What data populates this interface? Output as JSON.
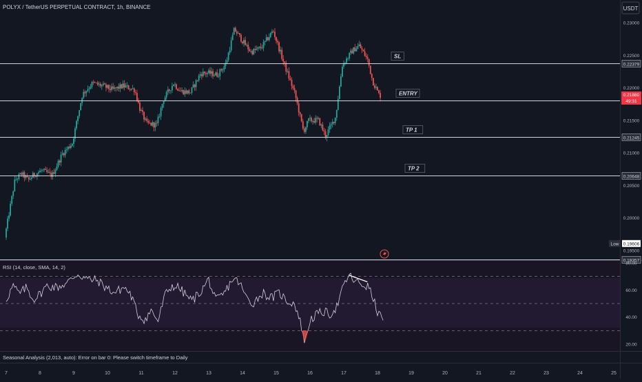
{
  "header": {
    "symbol_title": "POLYX / TetherUS PERPETUAL CONTRACT, 1h, BINANCE",
    "currency": "USDT"
  },
  "colors": {
    "background": "#131722",
    "up": "#26a69a",
    "down": "#ef5350",
    "rsi_line": "#d1d4dc",
    "price_badge": "#f23645"
  },
  "chart_data": [
    {
      "type": "candlestick",
      "title": "POLYX / TetherUS PERPETUAL CONTRACT, 1h, BINANCE",
      "ylim": [
        0.1935,
        0.2335
      ],
      "y_ticks": [
        "0.23000",
        "0.22500",
        "0.22000",
        "0.21500",
        "0.21000",
        "0.20500",
        "0.20000",
        "0.19500"
      ],
      "x_ticks": [
        "7",
        "8",
        "9",
        "10",
        "11",
        "12",
        "13",
        "14",
        "15",
        "16",
        "17",
        "18",
        "19",
        "20",
        "21",
        "22",
        "23",
        "24",
        "25"
      ],
      "path_points": [
        {
          "day": 7.0,
          "price": 0.197
        },
        {
          "day": 7.3,
          "price": 0.2058
        },
        {
          "day": 7.5,
          "price": 0.2068
        },
        {
          "day": 7.7,
          "price": 0.2058
        },
        {
          "day": 7.85,
          "price": 0.2066
        },
        {
          "day": 8.1,
          "price": 0.2073
        },
        {
          "day": 8.4,
          "price": 0.2065
        },
        {
          "day": 8.7,
          "price": 0.2098
        },
        {
          "day": 9.0,
          "price": 0.2115
        },
        {
          "day": 9.3,
          "price": 0.219
        },
        {
          "day": 9.6,
          "price": 0.2207
        },
        {
          "day": 9.9,
          "price": 0.2203
        },
        {
          "day": 10.2,
          "price": 0.2197
        },
        {
          "day": 10.5,
          "price": 0.2203
        },
        {
          "day": 10.85,
          "price": 0.2197
        },
        {
          "day": 11.0,
          "price": 0.2168
        },
        {
          "day": 11.2,
          "price": 0.2145
        },
        {
          "day": 11.5,
          "price": 0.2143
        },
        {
          "day": 11.7,
          "price": 0.2182
        },
        {
          "day": 12.0,
          "price": 0.2207
        },
        {
          "day": 12.2,
          "price": 0.2195
        },
        {
          "day": 12.5,
          "price": 0.2193
        },
        {
          "day": 12.8,
          "price": 0.2222
        },
        {
          "day": 13.0,
          "price": 0.2223
        },
        {
          "day": 13.3,
          "price": 0.222
        },
        {
          "day": 13.55,
          "price": 0.2237
        },
        {
          "day": 13.8,
          "price": 0.229
        },
        {
          "day": 14.1,
          "price": 0.2268
        },
        {
          "day": 14.3,
          "price": 0.2255
        },
        {
          "day": 14.6,
          "price": 0.2262
        },
        {
          "day": 14.95,
          "price": 0.2288
        },
        {
          "day": 15.3,
          "price": 0.2233
        },
        {
          "day": 15.6,
          "price": 0.219
        },
        {
          "day": 15.85,
          "price": 0.2133
        },
        {
          "day": 16.0,
          "price": 0.215
        },
        {
          "day": 16.3,
          "price": 0.215
        },
        {
          "day": 16.5,
          "price": 0.2126
        },
        {
          "day": 16.8,
          "price": 0.2155
        },
        {
          "day": 17.0,
          "price": 0.2235
        },
        {
          "day": 17.3,
          "price": 0.2257
        },
        {
          "day": 17.5,
          "price": 0.2265
        },
        {
          "day": 17.75,
          "price": 0.2243
        },
        {
          "day": 17.9,
          "price": 0.221
        },
        {
          "day": 18.1,
          "price": 0.2188
        }
      ],
      "levels": [
        {
          "name": "SL",
          "price": 0.22379,
          "label": "0.22379"
        },
        {
          "name": "ENTRY",
          "price": 0.21804,
          "label": "0.21804"
        },
        {
          "name": "TP 1",
          "price": 0.21245,
          "label": "0.21245"
        },
        {
          "name": "TP 2",
          "price": 0.20648,
          "label": "0.20648"
        },
        {
          "name": "",
          "price": 0.19357,
          "label": "0.19357"
        }
      ],
      "current_price": {
        "price": 0.2188,
        "value": "0.21880",
        "countdown": "49:31"
      },
      "low_marker": {
        "label": "Low",
        "price": 0.19606,
        "value": "0.19606"
      }
    },
    {
      "type": "line",
      "title": "RSI (14, close, SMA, 14, 2)",
      "ylim": [
        15,
        82
      ],
      "y_ticks": [
        "80.00",
        "60.00",
        "40.00",
        "20.00"
      ],
      "bands": [
        70,
        50,
        30
      ],
      "points": [
        {
          "day": 7.0,
          "value": 53
        },
        {
          "day": 7.2,
          "value": 63
        },
        {
          "day": 7.4,
          "value": 57
        },
        {
          "day": 7.6,
          "value": 62
        },
        {
          "day": 7.8,
          "value": 53
        },
        {
          "day": 8.0,
          "value": 57
        },
        {
          "day": 8.2,
          "value": 63
        },
        {
          "day": 8.5,
          "value": 62
        },
        {
          "day": 8.8,
          "value": 65
        },
        {
          "day": 9.1,
          "value": 72
        },
        {
          "day": 9.4,
          "value": 68
        },
        {
          "day": 9.7,
          "value": 67
        },
        {
          "day": 9.95,
          "value": 62
        },
        {
          "day": 10.2,
          "value": 58
        },
        {
          "day": 10.5,
          "value": 62
        },
        {
          "day": 10.7,
          "value": 56
        },
        {
          "day": 10.9,
          "value": 42
        },
        {
          "day": 11.1,
          "value": 38
        },
        {
          "day": 11.3,
          "value": 45
        },
        {
          "day": 11.5,
          "value": 37
        },
        {
          "day": 11.7,
          "value": 56
        },
        {
          "day": 11.9,
          "value": 63
        },
        {
          "day": 12.1,
          "value": 62
        },
        {
          "day": 12.3,
          "value": 57
        },
        {
          "day": 12.5,
          "value": 52
        },
        {
          "day": 12.8,
          "value": 60
        },
        {
          "day": 13.0,
          "value": 68
        },
        {
          "day": 13.2,
          "value": 52
        },
        {
          "day": 13.45,
          "value": 57
        },
        {
          "day": 13.7,
          "value": 68
        },
        {
          "day": 13.9,
          "value": 66
        },
        {
          "day": 14.1,
          "value": 55
        },
        {
          "day": 14.3,
          "value": 50
        },
        {
          "day": 14.6,
          "value": 58
        },
        {
          "day": 14.85,
          "value": 54
        },
        {
          "day": 15.1,
          "value": 58
        },
        {
          "day": 15.3,
          "value": 52
        },
        {
          "day": 15.55,
          "value": 50
        },
        {
          "day": 15.75,
          "value": 33
        },
        {
          "day": 15.85,
          "value": 21
        },
        {
          "day": 16.0,
          "value": 38
        },
        {
          "day": 16.2,
          "value": 42
        },
        {
          "day": 16.4,
          "value": 44
        },
        {
          "day": 16.6,
          "value": 42
        },
        {
          "day": 16.8,
          "value": 48
        },
        {
          "day": 17.0,
          "value": 63
        },
        {
          "day": 17.15,
          "value": 71
        },
        {
          "day": 17.35,
          "value": 66
        },
        {
          "day": 17.55,
          "value": 64
        },
        {
          "day": 17.75,
          "value": 62
        },
        {
          "day": 17.9,
          "value": 51
        },
        {
          "day": 18.05,
          "value": 41
        },
        {
          "day": 18.2,
          "value": 40
        }
      ],
      "divergence_line": [
        {
          "day": 17.15,
          "value": 71
        },
        {
          "day": 17.7,
          "value": 66
        }
      ]
    }
  ],
  "seasonal_text": "Seasonal Analysis (2,013, auto): Error on bar 0: Please switch timeframe to Daily"
}
